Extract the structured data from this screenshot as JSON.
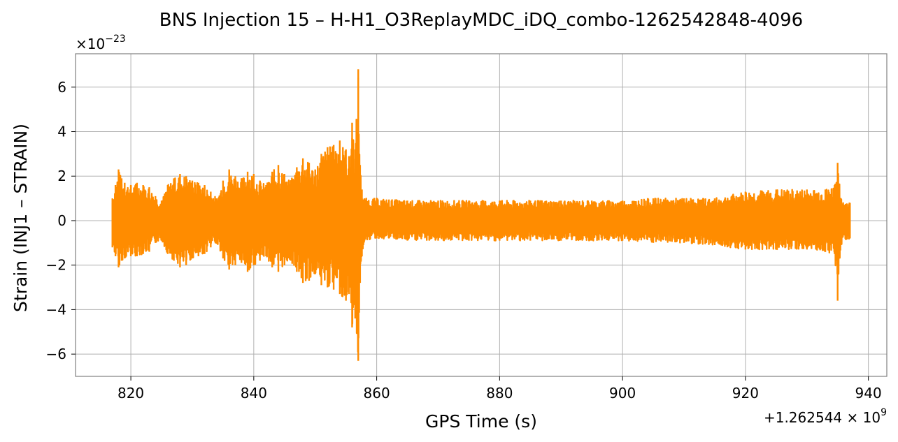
{
  "chart_data": {
    "type": "line",
    "title": "BNS Injection 15 – H-H1_O3ReplayMDC_iDQ_combo-1262542848-4096",
    "xlabel": "GPS Time (s)",
    "ylabel": "Strain (INJ1 – STRAIN)",
    "x_offset_label": "+1.262544 × 10",
    "x_offset_exponent": "9",
    "y_scale_label": "×10",
    "y_scale_exponent": "−23",
    "xlim": [
      811,
      943
    ],
    "ylim": [
      -7,
      7.5
    ],
    "x_ticks": [
      820,
      840,
      860,
      880,
      900,
      920,
      940
    ],
    "x_tick_labels": [
      "820",
      "840",
      "860",
      "880",
      "900",
      "920",
      "940"
    ],
    "y_ticks": [
      -6,
      -4,
      -2,
      0,
      2,
      4,
      6
    ],
    "y_tick_labels": [
      "−6",
      "−4",
      "−2",
      "0",
      "2",
      "4",
      "6"
    ],
    "grid": true,
    "series": [
      {
        "color": "#ff8c00",
        "x": [
          817,
          817.5,
          818,
          818.5,
          819,
          820,
          821,
          822,
          823,
          824,
          825,
          826,
          827,
          828,
          829,
          830,
          831,
          832,
          833,
          834,
          835,
          836,
          837,
          838,
          839,
          840,
          841,
          842,
          843,
          844,
          845,
          846,
          847,
          848,
          849,
          850,
          851,
          852,
          853,
          854,
          855,
          855.5,
          856,
          856.5,
          857,
          857.3,
          857.6,
          858,
          860,
          865,
          870,
          875,
          880,
          885,
          890,
          895,
          900,
          905,
          910,
          915,
          920,
          925,
          930,
          933,
          934.5,
          935,
          935.5,
          937
        ],
        "y_upper": [
          1.0,
          1.6,
          2.3,
          1.9,
          1.7,
          1.6,
          1.7,
          1.6,
          1.5,
          1.1,
          0.9,
          1.6,
          1.9,
          2.1,
          2.0,
          1.8,
          1.7,
          1.6,
          1.3,
          1.0,
          1.8,
          2.3,
          2.0,
          1.9,
          2.2,
          2.1,
          1.8,
          1.6,
          2.2,
          2.5,
          2.1,
          1.8,
          2.4,
          2.8,
          2.6,
          2.3,
          3.0,
          3.3,
          3.4,
          3.6,
          3.2,
          2.9,
          4.4,
          3.2,
          6.8,
          2.5,
          1.4,
          1.0,
          1.0,
          0.9,
          0.9,
          0.9,
          0.9,
          0.9,
          0.9,
          0.9,
          0.9,
          1.0,
          1.0,
          1.0,
          1.3,
          1.4,
          1.4,
          1.4,
          1.6,
          2.6,
          1.0,
          0.8
        ],
        "y_lower": [
          -1.2,
          -1.6,
          -2.1,
          -1.8,
          -1.7,
          -1.6,
          -1.6,
          -1.5,
          -1.4,
          -1.0,
          -0.9,
          -1.5,
          -1.8,
          -2.1,
          -2.0,
          -1.7,
          -1.6,
          -1.5,
          -1.2,
          -1.0,
          -1.7,
          -2.2,
          -2.0,
          -1.9,
          -2.3,
          -2.0,
          -1.8,
          -1.6,
          -2.1,
          -2.3,
          -2.0,
          -1.8,
          -2.3,
          -2.8,
          -2.7,
          -2.4,
          -2.9,
          -3.0,
          -3.1,
          -3.3,
          -3.6,
          -3.3,
          -4.8,
          -4.4,
          -6.3,
          -2.8,
          -1.6,
          -0.9,
          -0.8,
          -0.9,
          -0.9,
          -0.9,
          -0.9,
          -0.9,
          -0.9,
          -0.9,
          -0.9,
          -1.0,
          -1.0,
          -1.1,
          -1.3,
          -1.3,
          -1.3,
          -1.4,
          -1.5,
          -3.6,
          -1.1,
          -0.8
        ]
      }
    ]
  }
}
